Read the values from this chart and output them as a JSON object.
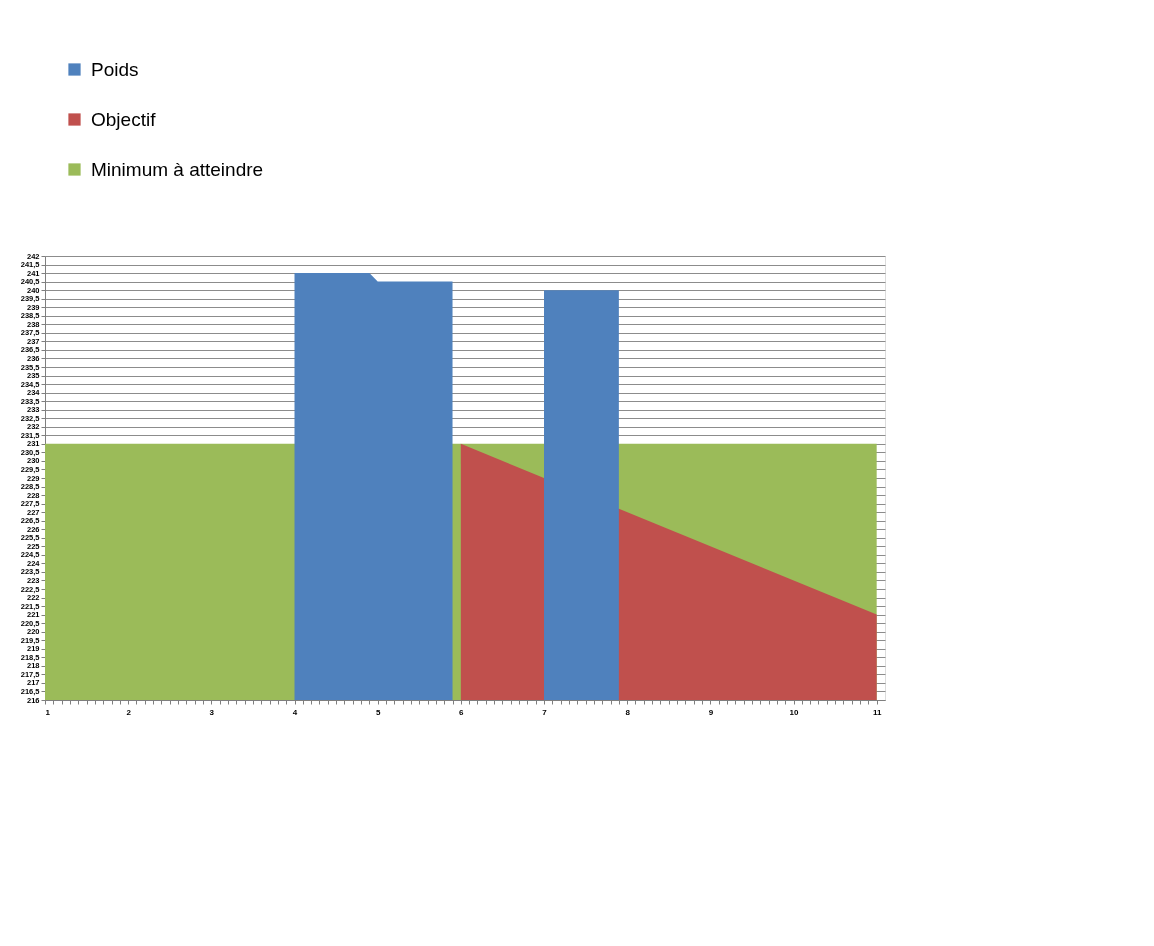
{
  "chart_data": {
    "type": "area",
    "legend": "top left",
    "grid": "y",
    "xlim": [
      1,
      11.1
    ],
    "ylim": [
      216,
      242
    ],
    "xticks": [
      1,
      {
        "value": 1.1,
        "label": null
      },
      {
        "value": 1.2,
        "label": null
      },
      {
        "value": 1.3,
        "label": null
      },
      {
        "value": 1.4,
        "label": null
      },
      {
        "value": 1.5,
        "label": null
      },
      {
        "value": 1.6,
        "label": null
      },
      {
        "value": 1.7,
        "label": null
      },
      {
        "value": 1.8,
        "label": null
      },
      {
        "value": 1.9,
        "label": null
      },
      2,
      {
        "value": 2.1,
        "label": null
      },
      {
        "value": 2.2,
        "label": null
      },
      {
        "value": 2.3,
        "label": null
      },
      {
        "value": 2.4,
        "label": null
      },
      {
        "value": 2.5,
        "label": null
      },
      {
        "value": 2.6,
        "label": null
      },
      {
        "value": 2.7,
        "label": null
      },
      {
        "value": 2.8,
        "label": null
      },
      {
        "value": 2.9,
        "label": null
      },
      3,
      {
        "value": 3.1,
        "label": null
      },
      {
        "value": 3.2,
        "label": null
      },
      {
        "value": 3.3,
        "label": null
      },
      {
        "value": 3.4,
        "label": null
      },
      {
        "value": 3.5,
        "label": null
      },
      {
        "value": 3.6,
        "label": null
      },
      {
        "value": 3.7,
        "label": null
      },
      {
        "value": 3.8,
        "label": null
      },
      {
        "value": 3.9,
        "label": null
      },
      4,
      {
        "value": 4.1,
        "label": null
      },
      {
        "value": 4.2,
        "label": null
      },
      {
        "value": 4.3,
        "label": null
      },
      {
        "value": 4.4,
        "label": null
      },
      {
        "value": 4.5,
        "label": null
      },
      {
        "value": 4.6,
        "label": null
      },
      {
        "value": 4.7,
        "label": null
      },
      {
        "value": 4.8,
        "label": null
      },
      {
        "value": 4.9,
        "label": null
      },
      5,
      {
        "value": 5.1,
        "label": null
      },
      {
        "value": 5.2,
        "label": null
      },
      {
        "value": 5.3,
        "label": null
      },
      {
        "value": 5.4,
        "label": null
      },
      {
        "value": 5.5,
        "label": null
      },
      {
        "value": 5.6,
        "label": null
      },
      {
        "value": 5.7,
        "label": null
      },
      {
        "value": 5.8,
        "label": null
      },
      {
        "value": 5.9,
        "label": null
      },
      6,
      {
        "value": 6.1,
        "label": null
      },
      {
        "value": 6.2,
        "label": null
      },
      {
        "value": 6.3,
        "label": null
      },
      {
        "value": 6.4,
        "label": null
      },
      {
        "value": 6.5,
        "label": null
      },
      {
        "value": 6.6,
        "label": null
      },
      {
        "value": 6.7,
        "label": null
      },
      {
        "value": 6.8,
        "label": null
      },
      {
        "value": 6.9,
        "label": null
      },
      7,
      {
        "value": 7.1,
        "label": null
      },
      {
        "value": 7.2,
        "label": null
      },
      {
        "value": 7.3,
        "label": null
      },
      {
        "value": 7.4,
        "label": null
      },
      {
        "value": 7.5,
        "label": null
      },
      {
        "value": 7.6,
        "label": null
      },
      {
        "value": 7.7,
        "label": null
      },
      {
        "value": 7.8,
        "label": null
      },
      {
        "value": 7.9,
        "label": null
      },
      8,
      {
        "value": 8.1,
        "label": null
      },
      {
        "value": 8.2,
        "label": null
      },
      {
        "value": 8.3,
        "label": null
      },
      {
        "value": 8.4,
        "label": null
      },
      {
        "value": 8.5,
        "label": null
      },
      {
        "value": 8.6,
        "label": null
      },
      {
        "value": 8.7,
        "label": null
      },
      {
        "value": 8.8,
        "label": null
      },
      {
        "value": 8.9,
        "label": null
      },
      9,
      {
        "value": 9.1,
        "label": null
      },
      {
        "value": 9.2,
        "label": null
      },
      {
        "value": 9.3,
        "label": null
      },
      {
        "value": 9.4,
        "label": null
      },
      {
        "value": 9.5,
        "label": null
      },
      {
        "value": 9.6,
        "label": null
      },
      {
        "value": 9.7,
        "label": null
      },
      {
        "value": 9.8,
        "label": null
      },
      {
        "value": 9.9,
        "label": null
      },
      10,
      {
        "value": 10.1,
        "label": null
      },
      {
        "value": 10.2,
        "label": null
      },
      {
        "value": 10.3,
        "label": null
      },
      {
        "value": 10.4,
        "label": null
      },
      {
        "value": 10.5,
        "label": null
      },
      {
        "value": 10.6,
        "label": null
      },
      {
        "value": 10.7,
        "label": null
      },
      {
        "value": 10.8,
        "label": null
      },
      {
        "value": 10.9,
        "label": null
      },
      11
    ],
    "yticks": [
      216,
      {
        "value": 216.5,
        "label": "216,5"
      },
      217,
      {
        "value": 217.5,
        "label": "217,5"
      },
      218,
      {
        "value": 218.5,
        "label": "218,5"
      },
      219,
      {
        "value": 219.5,
        "label": "219,5"
      },
      220,
      {
        "value": 220.5,
        "label": "220,5"
      },
      221,
      {
        "value": 221.5,
        "label": "221,5"
      },
      222,
      {
        "value": 222.5,
        "label": "222,5"
      },
      223,
      {
        "value": 223.5,
        "label": "223,5"
      },
      224,
      {
        "value": 224.5,
        "label": "224,5"
      },
      225,
      {
        "value": 225.5,
        "label": "225,5"
      },
      226,
      {
        "value": 226.5,
        "label": "226,5"
      },
      227,
      {
        "value": 227.5,
        "label": "227,5"
      },
      228,
      {
        "value": 228.5,
        "label": "228,5"
      },
      229,
      {
        "value": 229.5,
        "label": "229,5"
      },
      230,
      {
        "value": 230.5,
        "label": "230,5"
      },
      231,
      {
        "value": 231.5,
        "label": "231,5"
      },
      232,
      {
        "value": 232.5,
        "label": "232,5"
      },
      233,
      {
        "value": 233.5,
        "label": "233,5"
      },
      234,
      {
        "value": 234.5,
        "label": "234,5"
      },
      235,
      {
        "value": 235.5,
        "label": "235,5"
      },
      236,
      {
        "value": 236.5,
        "label": "236,5"
      },
      237,
      {
        "value": 237.5,
        "label": "237,5"
      },
      238,
      {
        "value": 238.5,
        "label": "238,5"
      },
      239,
      {
        "value": 239.5,
        "label": "239,5"
      },
      240,
      {
        "value": 240.5,
        "label": "240,5"
      },
      241,
      {
        "value": 241.5,
        "label": "241,5"
      },
      242
    ],
    "series": [
      {
        "name": "Poids",
        "color": "#4f81bd",
        "x": [
          4,
          4.9,
          5,
          5.9,
          6,
          7,
          7.9
        ],
        "values": [
          241,
          241,
          240.5,
          240.5,
          null,
          240,
          240
        ]
      },
      {
        "name": "Objectif",
        "color": "#c0504d",
        "x": [
          6,
          11
        ],
        "values": [
          231,
          221
        ]
      },
      {
        "name": "Minimum à atteindre",
        "color": "#9bbb59",
        "x": [
          1,
          11
        ],
        "values": [
          231,
          231
        ]
      }
    ]
  }
}
